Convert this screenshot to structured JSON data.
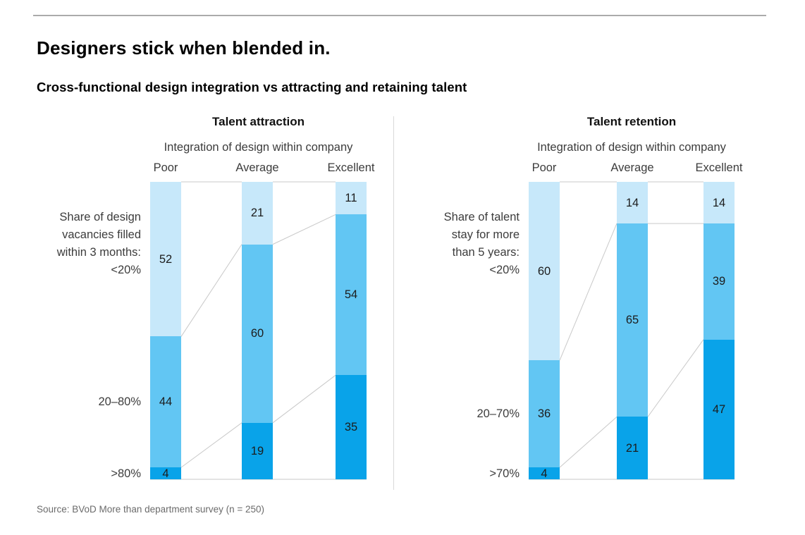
{
  "page": {
    "title": "Designers stick when blended in.",
    "subtitle": "Cross-functional design integration vs attracting and retaining talent",
    "source": "Source: BVoD More than department survey (n = 250)"
  },
  "colors": {
    "light_blue": "#c7e8fa",
    "medium_blue": "#62c6f3",
    "dark_blue": "#09a3e9",
    "connector_gray": "#c9c9c9",
    "rule_gray": "#ababab",
    "divider_gray": "#d9d9d9",
    "value_text": "#1c1c1c",
    "label_text": "#3c3c3c",
    "source_text": "#6b6b6b"
  },
  "chart_data": [
    {
      "type": "bar",
      "stacked": true,
      "panel_title": "Talent attraction",
      "axis_title": "Integration of design within company",
      "categories": [
        "Poor",
        "Average",
        "Excellent"
      ],
      "row_label_lines": [
        "Share of design",
        "vacancies filled",
        "within 3 months:"
      ],
      "ylim": [
        0,
        100
      ],
      "series": [
        {
          "name": "<20%",
          "color": "light_blue",
          "values": [
            52,
            21,
            11
          ]
        },
        {
          "name": "20–80%",
          "color": "medium_blue",
          "values": [
            44,
            60,
            54
          ]
        },
        {
          "name": ">80%",
          "color": "dark_blue",
          "values": [
            4,
            19,
            35
          ]
        }
      ]
    },
    {
      "type": "bar",
      "stacked": true,
      "panel_title": "Talent retention",
      "axis_title": "Integration of design within company",
      "categories": [
        "Poor",
        "Average",
        "Excellent"
      ],
      "row_label_lines": [
        "Share of talent",
        "stay for more",
        "than 5 years:"
      ],
      "ylim": [
        0,
        100
      ],
      "series": [
        {
          "name": "<20%",
          "color": "light_blue",
          "values": [
            60,
            14,
            14
          ]
        },
        {
          "name": "20–70%",
          "color": "medium_blue",
          "values": [
            36,
            65,
            39
          ]
        },
        {
          "name": ">70%",
          "color": "dark_blue",
          "values": [
            4,
            21,
            47
          ]
        }
      ]
    }
  ]
}
